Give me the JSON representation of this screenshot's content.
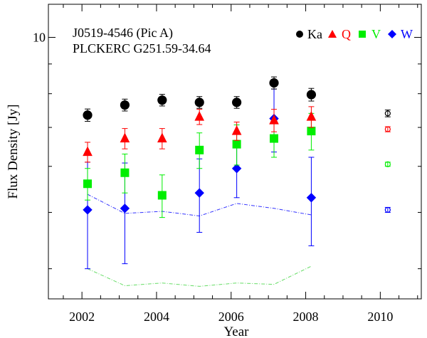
{
  "chart_data": {
    "type": "scatter",
    "title_lines": [
      "J0519-4546 (Pic A)",
      "PLCKERC G251.59-34.64"
    ],
    "xlabel": "Year",
    "ylabel": "Flux Density [Jy]",
    "xlim": [
      2001.1,
      2011.1
    ],
    "ylim": [
      3.55,
      11.4
    ],
    "yscale": "log",
    "x_ticks": [
      2002,
      2004,
      2006,
      2008,
      2010
    ],
    "x_tick_labels": [
      "2002",
      "2004",
      "2006",
      "2008",
      "2010"
    ],
    "x_minor_step": 0.5,
    "y_major_ticks": [
      10
    ],
    "y_tick_labels": [
      "10"
    ],
    "y_minor_ticks": [
      4,
      5,
      6,
      7,
      8,
      9
    ],
    "legend": [
      {
        "label": "Ka",
        "color": "#000000",
        "marker": "circle"
      },
      {
        "label": "Q",
        "color": "#ff0000",
        "marker": "triangle"
      },
      {
        "label": "V",
        "color": "#00ee00",
        "marker": "square"
      },
      {
        "label": "W",
        "color": "#0000ff",
        "marker": "diamond"
      }
    ],
    "series": [
      {
        "name": "Ka",
        "color": "#000000",
        "marker": "circle",
        "x": [
          2002.15,
          2003.15,
          2004.15,
          2005.15,
          2006.15,
          2007.15,
          2008.15
        ],
        "y": [
          7.35,
          7.65,
          7.8,
          7.73,
          7.73,
          8.35,
          7.97
        ],
        "err": [
          0.18,
          0.18,
          0.18,
          0.18,
          0.18,
          0.2,
          0.2
        ]
      },
      {
        "name": "Q",
        "color": "#ff0000",
        "marker": "triangle",
        "x": [
          2002.15,
          2003.15,
          2004.15,
          2005.15,
          2006.15,
          2007.15,
          2008.15
        ],
        "y": [
          6.35,
          6.7,
          6.7,
          7.3,
          6.9,
          7.2,
          7.3
        ],
        "err": [
          0.25,
          0.27,
          0.27,
          0.22,
          0.25,
          0.32,
          0.3
        ]
      },
      {
        "name": "V",
        "color": "#00ee00",
        "marker": "square",
        "x": [
          2002.15,
          2003.15,
          2004.15,
          2005.15,
          2006.15,
          2007.15,
          2008.15
        ],
        "y": [
          5.6,
          5.85,
          5.35,
          6.4,
          6.55,
          6.7,
          6.9
        ],
        "err": [
          0.35,
          0.45,
          0.45,
          0.45,
          0.52,
          0.48,
          0.5
        ]
      },
      {
        "name": "W",
        "color": "#0000ff",
        "marker": "diamond",
        "x": [
          2002.15,
          2003.15,
          2004.15,
          2005.15,
          2006.15,
          2007.15,
          2008.15
        ],
        "y": [
          5.05,
          5.08,
          null,
          5.4,
          5.95,
          7.25,
          5.3
        ],
        "err": [
          1.05,
          1.0,
          null,
          0.78,
          0.65,
          0.9,
          0.92
        ]
      }
    ],
    "reference_points_2010": [
      {
        "name": "Ka",
        "color": "#000000",
        "x": 2010.2,
        "y": 7.4,
        "err": 0.1
      },
      {
        "name": "Q",
        "color": "#ff0000",
        "x": 2010.2,
        "y": 6.95,
        "err": 0.07
      },
      {
        "name": "V",
        "color": "#00ee00",
        "x": 2010.2,
        "y": 6.05,
        "err": 0.05
      },
      {
        "name": "W",
        "color": "#0000ff",
        "x": 2010.2,
        "y": 5.05,
        "err": 0.05
      }
    ],
    "noise_lines": [
      {
        "name": "W",
        "color": "#3333ff",
        "x": [
          2002.15,
          2003.15,
          2004.15,
          2005.15,
          2006.15,
          2007.15,
          2008.15
        ],
        "y": [
          5.37,
          4.98,
          5.02,
          4.93,
          5.18,
          5.08,
          4.95
        ]
      },
      {
        "name": "V",
        "color": "#66dd66",
        "x": [
          2002.15,
          2003.15,
          2004.15,
          2005.15,
          2006.15,
          2007.15,
          2008.15
        ],
        "y": [
          4.0,
          3.74,
          3.78,
          3.73,
          3.78,
          3.76,
          4.04
        ]
      }
    ]
  }
}
